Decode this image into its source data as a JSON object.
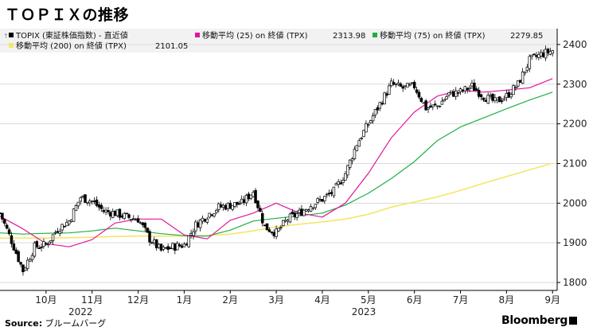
{
  "header": {
    "title": "ＴＯＰＩＸの推移"
  },
  "legend": {
    "topix": "TOPIX (東証株価指数) - 直近値",
    "ma25": "移動平均 (25)  on 終値 (TPX)",
    "ma25_value": "2313.98",
    "ma75": "移動平均 (75)  on 終値 (TPX)",
    "ma75_value": "2279.85",
    "ma200": "移動平均 (200)  on 終値 (TPX)",
    "ma200_value": "2101.05"
  },
  "footer": {
    "source_label": "Source:",
    "source_text": " ブルームバーグ",
    "brand": "Bloomberg"
  },
  "colors": {
    "candle": "#000000",
    "ma25": "#e0169b",
    "ma75": "#1fae43",
    "ma200": "#f5e66a",
    "grid": "#d9d9d9"
  },
  "chart_data": {
    "type": "line",
    "title": "ＴＯＰＩＸの推移",
    "xlabel": "",
    "ylabel": "",
    "ylim": [
      1780,
      2440
    ],
    "yticks": [
      1800,
      1900,
      2000,
      2100,
      2200,
      2300,
      2400
    ],
    "ytick_labels": [
      "1800",
      "1900",
      "2000",
      "2100",
      "2200",
      "2300",
      "2400"
    ],
    "xlim": [
      0,
      12.1
    ],
    "month_ticks": [
      {
        "label": "10月",
        "x": 1.0
      },
      {
        "label": "11月",
        "x": 2.0
      },
      {
        "label": "12月",
        "x": 3.0
      },
      {
        "label": "1月",
        "x": 4.0
      },
      {
        "label": "2月",
        "x": 5.0
      },
      {
        "label": "3月",
        "x": 6.0
      },
      {
        "label": "4月",
        "x": 7.0
      },
      {
        "label": "5月",
        "x": 8.0
      },
      {
        "label": "6月",
        "x": 9.0
      },
      {
        "label": "7月",
        "x": 10.0
      },
      {
        "label": "8月",
        "x": 11.0
      },
      {
        "label": "9月",
        "x": 12.0
      }
    ],
    "year_labels": [
      {
        "label": "2022",
        "x": 1.75
      },
      {
        "label": "2023",
        "x": 7.9
      }
    ],
    "series": [
      {
        "name": "TOPIX (東証株価指数) - 直近値",
        "style": "candlestick",
        "x": [
          0.0,
          0.25,
          0.5,
          0.75,
          1.0,
          1.25,
          1.5,
          1.75,
          2.0,
          2.25,
          2.5,
          2.75,
          3.0,
          3.25,
          3.5,
          3.75,
          4.0,
          4.25,
          4.5,
          4.75,
          5.0,
          5.25,
          5.5,
          5.75,
          6.0,
          6.25,
          6.5,
          6.75,
          7.0,
          7.25,
          7.5,
          7.75,
          8.0,
          8.25,
          8.5,
          8.75,
          9.0,
          9.25,
          9.5,
          9.75,
          10.0,
          10.25,
          10.5,
          10.75,
          11.0,
          11.25,
          11.5,
          11.75,
          12.0
        ],
        "values": [
          1975,
          1905,
          1830,
          1890,
          1895,
          1935,
          1955,
          2015,
          2005,
          1980,
          1975,
          1965,
          1960,
          1910,
          1880,
          1890,
          1895,
          1945,
          1970,
          1990,
          1995,
          2000,
          2030,
          1940,
          1925,
          1960,
          1975,
          1995,
          2010,
          2030,
          2075,
          2150,
          2200,
          2250,
          2300,
          2290,
          2295,
          2240,
          2245,
          2275,
          2280,
          2295,
          2270,
          2255,
          2270,
          2300,
          2360,
          2375,
          2385
        ]
      },
      {
        "name": "移動平均 (25)",
        "x": [
          0.0,
          0.5,
          1.0,
          1.5,
          2.0,
          2.5,
          3.0,
          3.5,
          4.0,
          4.5,
          5.0,
          5.5,
          6.0,
          6.5,
          7.0,
          7.5,
          8.0,
          8.5,
          9.0,
          9.5,
          10.0,
          10.5,
          11.0,
          11.5,
          12.0
        ],
        "values": [
          1967,
          1935,
          1898,
          1890,
          1908,
          1950,
          1960,
          1960,
          1920,
          1910,
          1957,
          1975,
          2000,
          1975,
          1965,
          2000,
          2075,
          2165,
          2230,
          2270,
          2285,
          2280,
          2285,
          2291,
          2313.98
        ]
      },
      {
        "name": "移動平均 (75)",
        "x": [
          0.0,
          0.5,
          1.0,
          1.5,
          2.0,
          2.5,
          3.0,
          3.5,
          4.0,
          4.5,
          5.0,
          5.5,
          6.0,
          6.5,
          7.0,
          7.5,
          8.0,
          8.5,
          9.0,
          9.5,
          10.0,
          10.5,
          11.0,
          11.5,
          12.0
        ],
        "values": [
          1925,
          1922,
          1924,
          1925,
          1930,
          1937,
          1930,
          1923,
          1918,
          1917,
          1932,
          1955,
          1962,
          1968,
          1975,
          1995,
          2025,
          2062,
          2105,
          2158,
          2192,
          2215,
          2238,
          2260,
          2279.85
        ]
      },
      {
        "name": "移動平均 (200)",
        "x": [
          0.0,
          0.5,
          1.0,
          1.5,
          2.0,
          2.5,
          3.0,
          3.5,
          4.0,
          4.5,
          5.0,
          5.5,
          6.0,
          6.5,
          7.0,
          7.5,
          8.0,
          8.5,
          9.0,
          9.5,
          10.0,
          10.5,
          11.0,
          11.5,
          12.0
        ],
        "values": [
          1912,
          1912,
          1912,
          1913,
          1914,
          1916,
          1917,
          1917,
          1917,
          1918,
          1922,
          1930,
          1940,
          1947,
          1953,
          1960,
          1972,
          1990,
          2003,
          2016,
          2032,
          2050,
          2067,
          2084,
          2101.05
        ]
      }
    ]
  }
}
